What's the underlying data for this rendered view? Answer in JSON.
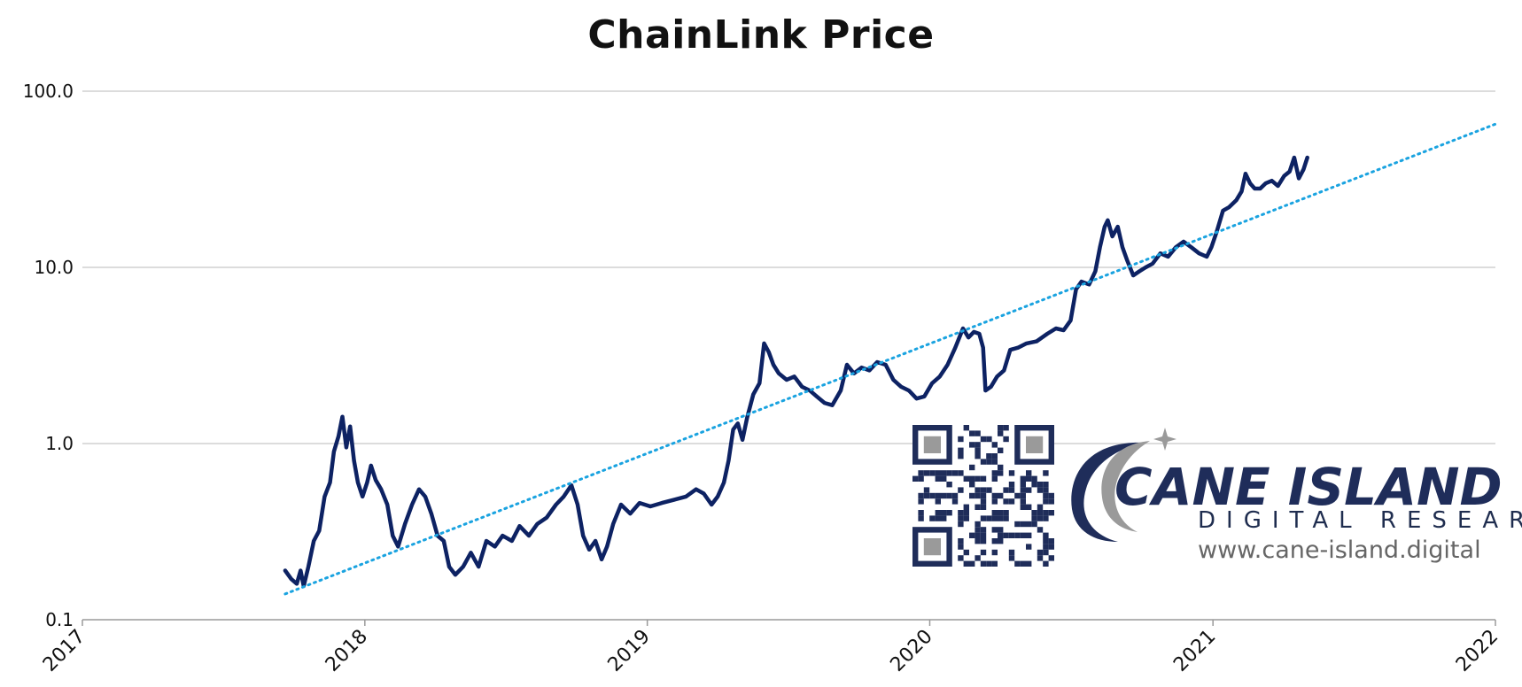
{
  "chart_data": {
    "type": "line",
    "title": "ChainLink Price",
    "xlabel": "",
    "ylabel": "",
    "y_scale": "log",
    "ylim": [
      0.1,
      100
    ],
    "y_ticks": [
      "0.1",
      "1.0",
      "10.0",
      "100.0"
    ],
    "x_ticks": [
      "2017",
      "2018",
      "2019",
      "2020",
      "2021",
      "2022"
    ],
    "xlim": [
      "2017-01-01",
      "2022-01-01"
    ],
    "grid": "horizontal",
    "legend": "none",
    "series": [
      {
        "style": "solid",
        "color": "#0d2263",
        "points": [
          [
            "2017-09-20",
            0.19
          ],
          [
            "2017-09-28",
            0.17
          ],
          [
            "2017-10-05",
            0.16
          ],
          [
            "2017-10-10",
            0.19
          ],
          [
            "2017-10-14",
            0.155
          ],
          [
            "2017-10-20",
            0.2
          ],
          [
            "2017-10-27",
            0.28
          ],
          [
            "2017-11-03",
            0.32
          ],
          [
            "2017-11-10",
            0.5
          ],
          [
            "2017-11-17",
            0.6
          ],
          [
            "2017-11-22",
            0.9
          ],
          [
            "2017-11-28",
            1.1
          ],
          [
            "2017-12-03",
            1.42
          ],
          [
            "2017-12-08",
            0.95
          ],
          [
            "2017-12-13",
            1.25
          ],
          [
            "2017-12-18",
            0.8
          ],
          [
            "2017-12-23",
            0.6
          ],
          [
            "2017-12-29",
            0.5
          ],
          [
            "2018-01-04",
            0.6
          ],
          [
            "2018-01-09",
            0.75
          ],
          [
            "2018-01-15",
            0.62
          ],
          [
            "2018-01-22",
            0.55
          ],
          [
            "2018-01-30",
            0.45
          ],
          [
            "2018-02-06",
            0.3
          ],
          [
            "2018-02-13",
            0.26
          ],
          [
            "2018-02-22",
            0.35
          ],
          [
            "2018-03-03",
            0.45
          ],
          [
            "2018-03-12",
            0.55
          ],
          [
            "2018-03-20",
            0.5
          ],
          [
            "2018-03-28",
            0.4
          ],
          [
            "2018-04-05",
            0.3
          ],
          [
            "2018-04-13",
            0.28
          ],
          [
            "2018-04-20",
            0.2
          ],
          [
            "2018-04-28",
            0.18
          ],
          [
            "2018-05-08",
            0.2
          ],
          [
            "2018-05-18",
            0.24
          ],
          [
            "2018-05-28",
            0.2
          ],
          [
            "2018-06-07",
            0.28
          ],
          [
            "2018-06-18",
            0.26
          ],
          [
            "2018-06-28",
            0.3
          ],
          [
            "2018-07-10",
            0.28
          ],
          [
            "2018-07-20",
            0.34
          ],
          [
            "2018-08-01",
            0.3
          ],
          [
            "2018-08-12",
            0.35
          ],
          [
            "2018-08-24",
            0.38
          ],
          [
            "2018-09-05",
            0.45
          ],
          [
            "2018-09-15",
            0.5
          ],
          [
            "2018-09-25",
            0.58
          ],
          [
            "2018-10-03",
            0.45
          ],
          [
            "2018-10-10",
            0.3
          ],
          [
            "2018-10-18",
            0.25
          ],
          [
            "2018-10-26",
            0.28
          ],
          [
            "2018-11-03",
            0.22
          ],
          [
            "2018-11-10",
            0.26
          ],
          [
            "2018-11-18",
            0.35
          ],
          [
            "2018-11-28",
            0.45
          ],
          [
            "2018-12-10",
            0.4
          ],
          [
            "2018-12-22",
            0.46
          ],
          [
            "2019-01-05",
            0.44
          ],
          [
            "2019-01-20",
            0.46
          ],
          [
            "2019-02-05",
            0.48
          ],
          [
            "2019-02-20",
            0.5
          ],
          [
            "2019-03-05",
            0.55
          ],
          [
            "2019-03-15",
            0.52
          ],
          [
            "2019-03-25",
            0.45
          ],
          [
            "2019-04-02",
            0.5
          ],
          [
            "2019-04-10",
            0.6
          ],
          [
            "2019-04-16",
            0.8
          ],
          [
            "2019-04-22",
            1.2
          ],
          [
            "2019-04-28",
            1.3
          ],
          [
            "2019-05-04",
            1.05
          ],
          [
            "2019-05-10",
            1.4
          ],
          [
            "2019-05-18",
            1.9
          ],
          [
            "2019-05-26",
            2.2
          ],
          [
            "2019-06-01",
            3.7
          ],
          [
            "2019-06-07",
            3.3
          ],
          [
            "2019-06-13",
            2.8
          ],
          [
            "2019-06-20",
            2.5
          ],
          [
            "2019-06-30",
            2.3
          ],
          [
            "2019-07-10",
            2.4
          ],
          [
            "2019-07-20",
            2.1
          ],
          [
            "2019-07-30",
            2.0
          ],
          [
            "2019-08-08",
            1.85
          ],
          [
            "2019-08-18",
            1.7
          ],
          [
            "2019-08-28",
            1.65
          ],
          [
            "2019-09-08",
            2.0
          ],
          [
            "2019-09-16",
            2.8
          ],
          [
            "2019-09-25",
            2.5
          ],
          [
            "2019-10-05",
            2.7
          ],
          [
            "2019-10-15",
            2.6
          ],
          [
            "2019-10-25",
            2.9
          ],
          [
            "2019-11-05",
            2.8
          ],
          [
            "2019-11-15",
            2.3
          ],
          [
            "2019-11-25",
            2.1
          ],
          [
            "2019-12-05",
            2.0
          ],
          [
            "2019-12-15",
            1.8
          ],
          [
            "2019-12-25",
            1.85
          ],
          [
            "2020-01-04",
            2.2
          ],
          [
            "2020-01-14",
            2.4
          ],
          [
            "2020-01-24",
            2.8
          ],
          [
            "2020-02-03",
            3.5
          ],
          [
            "2020-02-13",
            4.5
          ],
          [
            "2020-02-20",
            4.0
          ],
          [
            "2020-02-27",
            4.3
          ],
          [
            "2020-03-05",
            4.2
          ],
          [
            "2020-03-10",
            3.5
          ],
          [
            "2020-03-13",
            2.0
          ],
          [
            "2020-03-20",
            2.1
          ],
          [
            "2020-03-28",
            2.4
          ],
          [
            "2020-04-06",
            2.6
          ],
          [
            "2020-04-14",
            3.4
          ],
          [
            "2020-04-24",
            3.5
          ],
          [
            "2020-05-05",
            3.7
          ],
          [
            "2020-05-18",
            3.8
          ],
          [
            "2020-06-01",
            4.2
          ],
          [
            "2020-06-12",
            4.5
          ],
          [
            "2020-06-22",
            4.4
          ],
          [
            "2020-07-01",
            5.0
          ],
          [
            "2020-07-08",
            7.5
          ],
          [
            "2020-07-15",
            8.3
          ],
          [
            "2020-07-25",
            8.0
          ],
          [
            "2020-08-02",
            9.5
          ],
          [
            "2020-08-08",
            13.0
          ],
          [
            "2020-08-14",
            17.0
          ],
          [
            "2020-08-18",
            18.5
          ],
          [
            "2020-08-24",
            15.0
          ],
          [
            "2020-08-31",
            17.0
          ],
          [
            "2020-09-06",
            13.0
          ],
          [
            "2020-09-12",
            11.0
          ],
          [
            "2020-09-20",
            9.0
          ],
          [
            "2020-09-28",
            9.5
          ],
          [
            "2020-10-06",
            10.0
          ],
          [
            "2020-10-15",
            10.5
          ],
          [
            "2020-10-25",
            12.0
          ],
          [
            "2020-11-04",
            11.5
          ],
          [
            "2020-11-14",
            13.0
          ],
          [
            "2020-11-24",
            14.0
          ],
          [
            "2020-12-04",
            13.0
          ],
          [
            "2020-12-14",
            12.0
          ],
          [
            "2020-12-24",
            11.5
          ],
          [
            "2020-12-30",
            13.0
          ],
          [
            "2021-01-06",
            16.0
          ],
          [
            "2021-01-14",
            21.0
          ],
          [
            "2021-01-22",
            22.0
          ],
          [
            "2021-01-31",
            24.0
          ],
          [
            "2021-02-07",
            27.0
          ],
          [
            "2021-02-12",
            34.0
          ],
          [
            "2021-02-18",
            30.0
          ],
          [
            "2021-02-24",
            28.0
          ],
          [
            "2021-03-03",
            28.0
          ],
          [
            "2021-03-10",
            30.0
          ],
          [
            "2021-03-18",
            31.0
          ],
          [
            "2021-03-26",
            29.0
          ],
          [
            "2021-04-03",
            33.0
          ],
          [
            "2021-04-10",
            35.0
          ],
          [
            "2021-04-16",
            42.0
          ],
          [
            "2021-04-22",
            32.0
          ],
          [
            "2021-04-28",
            36.0
          ],
          [
            "2021-05-03",
            42.0
          ]
        ]
      },
      {
        "style": "dotted",
        "color": "#1aa3e0",
        "points": [
          [
            "2017-09-20",
            0.14
          ],
          [
            "2022-01-01",
            65.0
          ]
        ]
      }
    ]
  },
  "watermark": {
    "brand": "CANE ISLAND",
    "tagline": "DIGITAL RESEARCH",
    "url": "www.cane-island.digital"
  }
}
